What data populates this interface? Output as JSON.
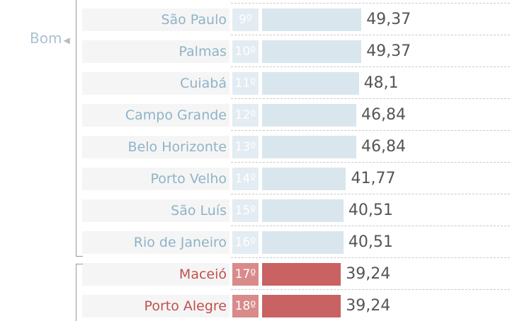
{
  "colors": {
    "good_text": "#8fb3c8",
    "good_rank": "#e3ecf2",
    "good_bar": "#d9e6ee",
    "bad_text": "#c0504d",
    "bad_rank": "#d98a8a",
    "bad_bar": "#c96262",
    "group_label": "#a9c3cf"
  },
  "groups": [
    {
      "label": "Bom",
      "color": "good"
    },
    {
      "label": "",
      "color": "bad"
    }
  ],
  "chart_data": {
    "type": "bar",
    "orientation": "horizontal",
    "categories": [
      "São Paulo",
      "Palmas",
      "Cuiabá",
      "Campo Grande",
      "Belo Horizonte",
      "Porto Velho",
      "São Luís",
      "Rio de Janeiro",
      "Maceió",
      "Porto Alegre"
    ],
    "ranks": [
      "9º",
      "10º",
      "11º",
      "12º",
      "13º",
      "14º",
      "15º",
      "16º",
      "17º",
      "18º"
    ],
    "values": [
      49.37,
      49.37,
      48.1,
      46.84,
      46.84,
      41.77,
      40.51,
      40.51,
      39.24,
      39.24
    ],
    "value_labels": [
      "49,37",
      "49,37",
      "48,1",
      "46,84",
      "46,84",
      "41,77",
      "40,51",
      "40,51",
      "39,24",
      "39,24"
    ],
    "group": [
      "good",
      "good",
      "good",
      "good",
      "good",
      "good",
      "good",
      "good",
      "bad",
      "bad"
    ]
  }
}
